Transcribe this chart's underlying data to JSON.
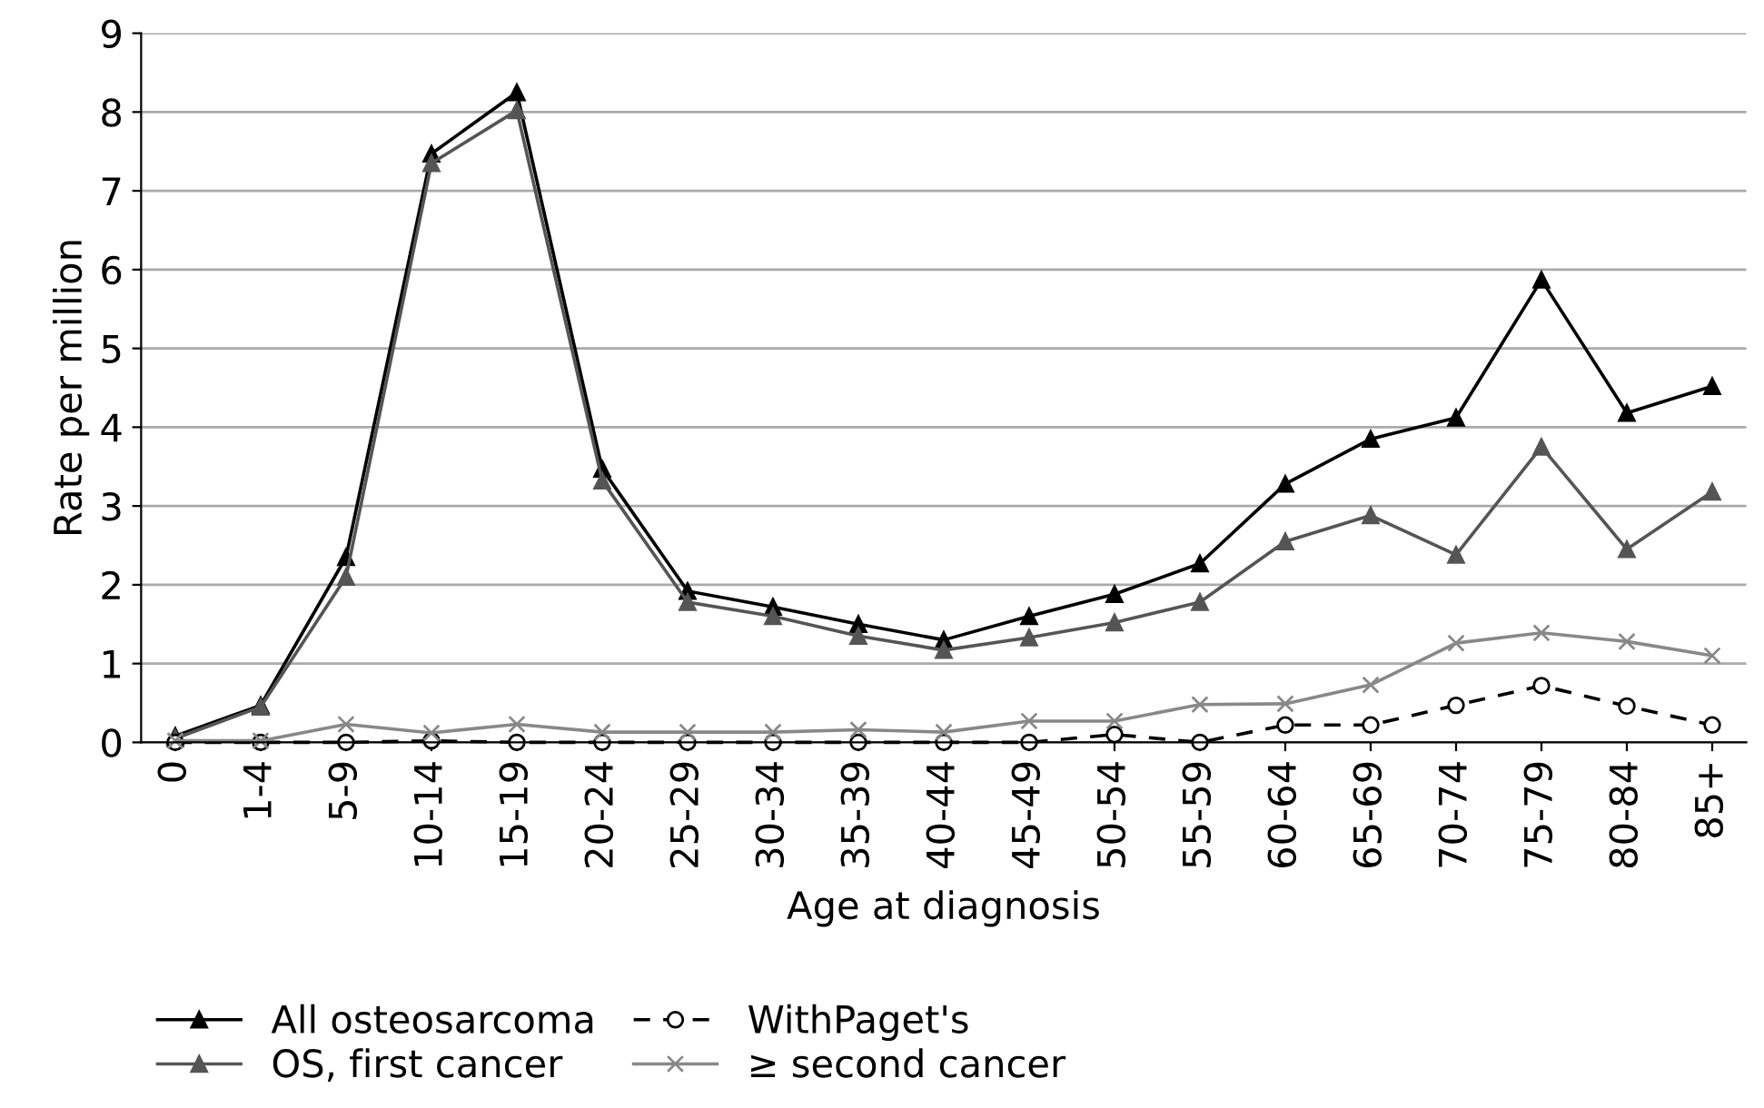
{
  "chart_data": {
    "type": "line",
    "xlabel": "Age at diagnosis",
    "ylabel": "Rate per million",
    "categories": [
      "0",
      "1-4",
      "5-9",
      "10-14",
      "15-19",
      "20-24",
      "25-29",
      "30-34",
      "35-39",
      "40-44",
      "45-49",
      "50-54",
      "55-59",
      "60-64",
      "65-69",
      "70-74",
      "75-79",
      "80-84",
      "85+"
    ],
    "series": [
      {
        "name": "All osteosarcoma",
        "color": "#000000",
        "marker": "triangle",
        "line_style": "solid",
        "values": [
          0.08,
          0.47,
          2.35,
          7.47,
          8.25,
          3.47,
          1.92,
          1.72,
          1.5,
          1.3,
          1.6,
          1.88,
          2.27,
          3.28,
          3.85,
          4.12,
          5.87,
          4.18,
          4.52
        ]
      },
      {
        "name": "OS, first cancer",
        "color": "#555555",
        "marker": "triangle",
        "line_style": "solid",
        "values": [
          0.05,
          0.45,
          2.1,
          7.35,
          8.02,
          3.32,
          1.78,
          1.6,
          1.35,
          1.17,
          1.33,
          1.52,
          1.78,
          2.55,
          2.88,
          2.38,
          3.75,
          2.45,
          3.18
        ]
      },
      {
        "name": "WithPaget's",
        "color": "#000000",
        "marker": "circle",
        "line_style": "dashed",
        "values": [
          0,
          0,
          0,
          0.02,
          0,
          0,
          0,
          0,
          0,
          0,
          0,
          0.1,
          0,
          0.22,
          0.22,
          0.47,
          0.72,
          0.46,
          0.22
        ]
      },
      {
        "name": "≥ second cancer",
        "color": "#888888",
        "marker": "cross",
        "line_style": "solid",
        "values": [
          0.02,
          0.02,
          0.23,
          0.12,
          0.23,
          0.13,
          0.13,
          0.13,
          0.16,
          0.13,
          0.27,
          0.27,
          0.48,
          0.49,
          0.73,
          1.26,
          1.39,
          1.28,
          1.1
        ]
      }
    ],
    "ylim": [
      0,
      9
    ],
    "yticks": [
      0,
      1,
      2,
      3,
      4,
      5,
      6,
      7,
      8,
      9
    ],
    "grid": "y",
    "legend": "bottom"
  }
}
